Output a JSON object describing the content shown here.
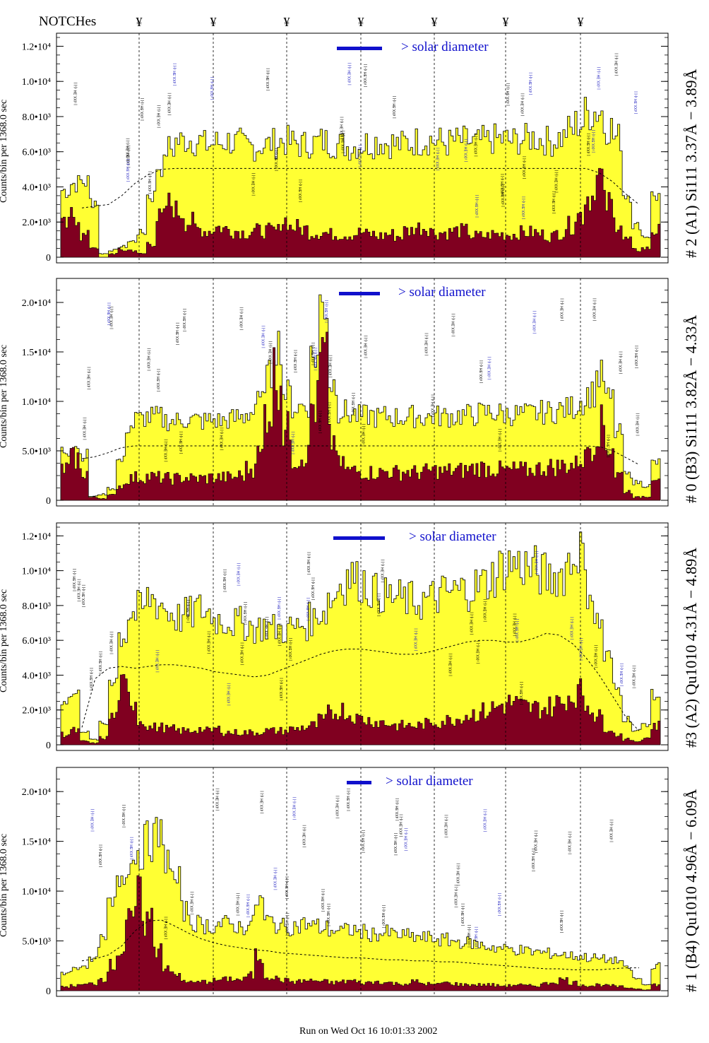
{
  "notches_label": "NOTCHes",
  "notch_symbol": "¥",
  "notch_x": [
    197,
    302,
    406,
    511,
    615,
    716,
    822
  ],
  "footer": "Run on Wed Oct 16 10:01:33 2002",
  "colors": {
    "total_fill": "#ffff33",
    "peak_fill": "#800020",
    "bar_legend": "#1010cc",
    "line_label_blue": "#2020c0",
    "line_label_black": "#000000"
  },
  "chart_data": [
    {
      "type": "area",
      "ylabel": "Counts/bin per   1368.0 sec",
      "right_title": "# 2 (A1) Si111  3.37Å − 3.89Å",
      "legend_text": "> solar diameter",
      "ylim": [
        0,
        12500
      ],
      "yticks": [
        0,
        2000,
        4000,
        6000,
        8000,
        10000,
        12000
      ],
      "ytick_labels": [
        "0",
        "2.0•10³",
        "4.0•10³",
        "6.0•10³",
        "8.0•10³",
        "1.0•10⁴",
        "1.2•10⁴"
      ],
      "series": [
        {
          "values": [
            3800,
            4200,
            4300,
            3200,
            200,
            400,
            600,
            900,
            1400,
            3500,
            5200,
            6200,
            6600,
            6700,
            6600,
            6400,
            6500,
            6600,
            6500,
            6300,
            6300,
            6400,
            6500,
            6600,
            6500,
            6400,
            6500,
            6600,
            6500,
            6400,
            6300,
            6400,
            6500,
            6600,
            6500,
            6400,
            6500,
            6600,
            6700,
            6600,
            6500,
            6600,
            6600,
            6500,
            6600,
            6700,
            6700,
            6600,
            6700,
            6800,
            6700,
            6600,
            6800,
            7200,
            7600,
            8200,
            8300,
            7400,
            6800,
            3600,
            1800,
            1200,
            3500
          ]
        },
        {
          "values": [
            1800,
            2400,
            1200,
            600,
            0,
            200,
            400,
            400,
            200,
            800,
            2200,
            3000,
            2600,
            2000,
            1600,
            1500,
            1700,
            1600,
            1500,
            1400,
            1500,
            1500,
            1500,
            2100,
            1700,
            1600,
            1400,
            1400,
            1300,
            1300,
            1300,
            1400,
            1300,
            1200,
            1300,
            1200,
            1500,
            1700,
            1700,
            1400,
            1400,
            1500,
            1500,
            1200,
            1200,
            1300,
            1300,
            1300,
            1400,
            1400,
            1300,
            1200,
            1400,
            1800,
            2400,
            3500,
            4500,
            3000,
            2000,
            1000,
            400,
            500,
            1500
          ]
        },
        {
          "values": [
            2800,
            2900,
            3000,
            3500,
            4200,
            4700,
            5000,
            5050,
            5050,
            5050,
            5050,
            5050,
            5050,
            5050,
            5050,
            5050,
            5050,
            5050,
            5050,
            5050,
            5050,
            5050,
            5050,
            5050,
            5050,
            5050,
            5050,
            5050,
            5050,
            5050,
            5050,
            5050,
            5050,
            5050,
            5050,
            5050,
            5050,
            5050,
            5050,
            4800,
            4300,
            3600,
            3000
          ]
        }
      ]
    },
    {
      "type": "area",
      "ylabel": "Counts/bin per   1368.0 sec",
      "right_title": "# 0 (B3) Si111  3.82Å − 4.33Å",
      "legend_text": "> solar diameter",
      "ylim": [
        0,
        22000
      ],
      "yticks": [
        0,
        5000,
        10000,
        15000,
        20000
      ],
      "ytick_labels": [
        "0",
        "5.0•10³",
        "1.0•10⁴",
        "1.5•10⁴",
        "2.0•10⁴"
      ],
      "series": [
        {
          "values": [
            5000,
            5600,
            4600,
            400,
            600,
            1200,
            4000,
            7500,
            8200,
            8400,
            8400,
            8100,
            8000,
            8200,
            8100,
            8000,
            8100,
            8000,
            8200,
            8400,
            8900,
            9800,
            12500,
            15800,
            10800,
            9400,
            9600,
            14500,
            19800,
            11800,
            9000,
            8700,
            8500,
            8600,
            8400,
            8500,
            8400,
            8400,
            8500,
            8400,
            8500,
            8500,
            8500,
            8600,
            8600,
            8800,
            8900,
            8800,
            8700,
            8700,
            8700,
            8800,
            8900,
            9000,
            9200,
            9400,
            10000,
            10800,
            12500,
            10200,
            6800,
            2600,
            1800,
            1500,
            3800
          ]
        },
        {
          "values": [
            3200,
            4200,
            2800,
            300,
            200,
            500,
            1500,
            2200,
            2300,
            2400,
            2300,
            2200,
            2200,
            2300,
            2200,
            2200,
            2300,
            2300,
            2300,
            2500,
            3200,
            4600,
            9200,
            12800,
            7000,
            4200,
            4600,
            9600,
            14200,
            6000,
            3500,
            3000,
            2900,
            2800,
            2800,
            2900,
            2800,
            2900,
            2800,
            2900,
            3000,
            2900,
            3000,
            3000,
            3200,
            3300,
            3200,
            3100,
            3000,
            3100,
            3000,
            3200,
            3300,
            3400,
            3500,
            3600,
            4200,
            5600,
            7500,
            5500,
            2600,
            900,
            300,
            400,
            2500
          ]
        },
        {
          "values": [
            4200,
            4400,
            4800,
            5300,
            5500,
            5500,
            5500,
            5500,
            5500,
            5500,
            5500,
            5500,
            5500,
            5500,
            5500,
            5500,
            5500,
            5500,
            5500,
            5500,
            5500,
            5500,
            5500,
            5500,
            5500,
            5500,
            5500,
            5500,
            5500,
            5500,
            5500,
            5500,
            5500,
            5500,
            5500,
            5500,
            5500,
            5500,
            5500,
            5500,
            5400,
            5000,
            4300,
            3600
          ]
        }
      ]
    },
    {
      "type": "area",
      "ylabel": "Counts/bin per   1368.0 sec",
      "right_title": "#3 (A2) Qu1010  4.31Å − 4.89Å",
      "legend_text": "> solar diameter",
      "ylim": [
        0,
        12500
      ],
      "yticks": [
        0,
        2000,
        4000,
        6000,
        8000,
        10000,
        12000
      ],
      "ytick_labels": [
        "0",
        "2.0•10³",
        "4.0•10³",
        "6.0•10³",
        "8.0•10³",
        "1.0•10⁴",
        "1.2•10⁴"
      ],
      "series": [
        {
          "values": [
            2600,
            2900,
            800,
            300,
            1200,
            3800,
            6300,
            7500,
            7800,
            8400,
            8100,
            7600,
            7300,
            7500,
            7800,
            7600,
            7200,
            7100,
            7000,
            6900,
            6700,
            6800,
            6700,
            6600,
            6700,
            6900,
            7200,
            7700,
            8400,
            9300,
            9700,
            9400,
            9000,
            8700,
            8500,
            8400,
            8300,
            8200,
            8300,
            8500,
            8700,
            8800,
            8900,
            9100,
            9300,
            9700,
            10200,
            10400,
            10300,
            10100,
            9800,
            9600,
            9800,
            10500,
            11200,
            9000,
            7000,
            5000,
            3200,
            1500,
            800,
            1200,
            2800
          ]
        },
        {
          "values": [
            600,
            800,
            200,
            100,
            400,
            1600,
            3200,
            2600,
            1400,
            1000,
            1000,
            900,
            800,
            800,
            900,
            800,
            900,
            700,
            700,
            700,
            700,
            800,
            800,
            800,
            900,
            1000,
            1100,
            1400,
            1800,
            2000,
            1700,
            1500,
            1400,
            1300,
            1200,
            1100,
            1100,
            1100,
            1200,
            1300,
            1400,
            1500,
            1700,
            1800,
            1900,
            2100,
            2300,
            2400,
            2200,
            2100,
            2100,
            2200,
            2400,
            2800,
            3000,
            2300,
            1600,
            1000,
            600,
            300,
            200,
            400,
            1100
          ]
        },
        {
          "values": [
            1000,
            3800,
            4400,
            4500,
            4400,
            4500,
            4600,
            4600,
            4500,
            4400,
            4200,
            4100,
            4000,
            3900,
            4000,
            4300,
            4600,
            4900,
            5200,
            5400,
            5500,
            5500,
            5400,
            5300,
            5200,
            5200,
            5300,
            5500,
            5700,
            5900,
            6000,
            6000,
            5900,
            5900,
            6100,
            6400,
            6300,
            5800,
            5000,
            4000,
            2800,
            1600,
            800
          ]
        }
      ]
    },
    {
      "type": "area",
      "ylabel": "Counts/bin per   1368.0 sec",
      "right_title": "# 1 (B4) Qu1010 4.96Å − 6.09Å",
      "legend_text": "> solar diameter",
      "ylim": [
        0,
        22000
      ],
      "yticks": [
        0,
        5000,
        10000,
        15000,
        20000
      ],
      "ytick_labels": [
        "0",
        "5.0•10³",
        "1.0•10⁴",
        "1.5•10⁴",
        "2.0•10⁴"
      ],
      "series": [
        {
          "values": [
            1800,
            2200,
            2600,
            3000,
            5000,
            8500,
            11500,
            13000,
            14000,
            15000,
            15500,
            13500,
            11000,
            8000,
            6800,
            6600,
            6500,
            6700,
            6600,
            6400,
            6700,
            9000,
            7000,
            6600,
            6400,
            6500,
            6700,
            6500,
            6300,
            6100,
            6000,
            6100,
            5900,
            5700,
            5700,
            5800,
            5600,
            5500,
            5400,
            5300,
            5200,
            5100,
            5000,
            4900,
            4800,
            4600,
            4400,
            4300,
            4200,
            4100,
            4000,
            3900,
            3800,
            3700,
            3600,
            3500,
            3400,
            3300,
            3200,
            3100,
            3000,
            2200,
            1200,
            600,
            2500
          ]
        },
        {
          "values": [
            400,
            500,
            600,
            700,
            1200,
            2500,
            4000,
            6500,
            9000,
            7000,
            4500,
            2500,
            1500,
            1000,
            800,
            900,
            1000,
            1100,
            1200,
            1100,
            1500,
            3500,
            1500,
            1200,
            1000,
            900,
            1000,
            1000,
            900,
            800,
            900,
            1000,
            800,
            800,
            900,
            800,
            700,
            700,
            900,
            700,
            600,
            800,
            700,
            600,
            600,
            600,
            600,
            500,
            500,
            600,
            500,
            500,
            700,
            900,
            1100,
            800,
            600,
            500,
            600,
            500,
            400,
            300,
            200,
            100,
            600
          ]
        },
        {
          "values": [
            3000,
            3200,
            3600,
            4500,
            6000,
            7000,
            7100,
            6500,
            5800,
            5200,
            4800,
            4500,
            4300,
            4100,
            4000,
            3800,
            3700,
            3600,
            3500,
            3400,
            3300,
            3300,
            3200,
            3100,
            3100,
            3000,
            3000,
            2900,
            2900,
            2800,
            2700,
            2600,
            2500,
            2400,
            2300,
            2200,
            2200,
            2100,
            2100,
            2100,
            2200,
            2300,
            2300
          ]
        }
      ]
    }
  ]
}
